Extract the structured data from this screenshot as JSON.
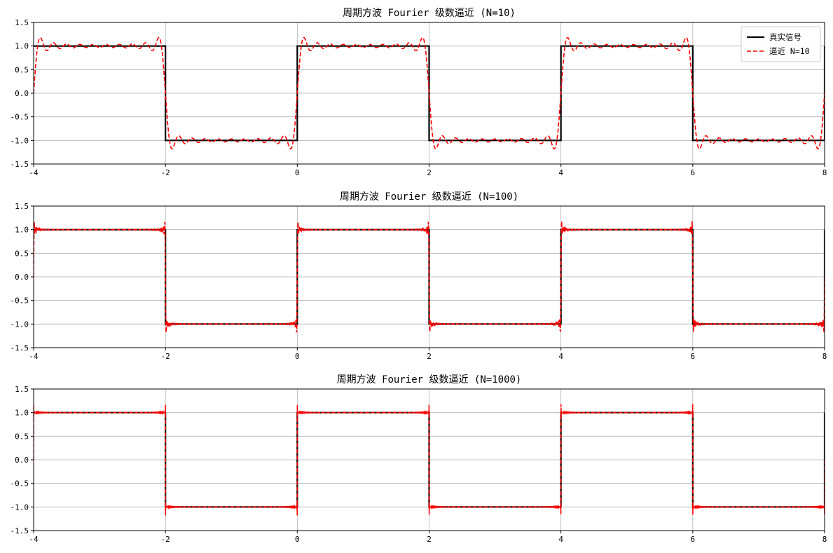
{
  "colors": {
    "true_signal": "#000000",
    "approx": "#ff0000",
    "grid": "#b0b0b0",
    "axes": "#000000"
  },
  "legend": {
    "placement": "top-right",
    "entries": [
      {
        "label": "真实信号",
        "style": "solid",
        "color": "#000000"
      },
      {
        "label": "逼近 N=10",
        "style": "dashed",
        "color": "#ff0000"
      }
    ]
  },
  "chart_data": [
    {
      "type": "line",
      "title": "周期方波 Fourier 级数逼近 (N=10)",
      "xlabel": "",
      "ylabel": "",
      "xlim": [
        -4,
        8
      ],
      "ylim": [
        -1.5,
        1.5
      ],
      "xticks": [
        "-4",
        "-2",
        "0",
        "2",
        "4",
        "6",
        "8"
      ],
      "yticks": [
        "1.5",
        "1.0",
        "0.5",
        "0.0",
        "-0.5",
        "-1.0",
        "-1.5"
      ],
      "grid": true,
      "legend": true,
      "series": [
        {
          "name": "真实信号",
          "style": "solid",
          "color": "#000000",
          "function": "square wave, period 4, amplitude 1 (+1 on [0,2), -1 on [2,4))"
        },
        {
          "name": "逼近 N=10",
          "style": "dashed",
          "color": "#ff0000",
          "function": "Fourier partial sum, 10 terms",
          "terms": 10
        }
      ]
    },
    {
      "type": "line",
      "title": "周期方波 Fourier 级数逼近 (N=100)",
      "xlabel": "",
      "ylabel": "",
      "xlim": [
        -4,
        8
      ],
      "ylim": [
        -1.5,
        1.5
      ],
      "xticks": [
        "-4",
        "-2",
        "0",
        "2",
        "4",
        "6",
        "8"
      ],
      "yticks": [
        "1.5",
        "1.0",
        "0.5",
        "0.0",
        "-0.5",
        "-1.0",
        "-1.5"
      ],
      "grid": true,
      "legend": false,
      "series": [
        {
          "style": "solid",
          "color": "#000000",
          "function": "square wave, period 4, amplitude 1"
        },
        {
          "style": "dashed",
          "color": "#ff0000",
          "function": "Fourier partial sum, 100 terms",
          "terms": 100
        }
      ]
    },
    {
      "type": "line",
      "title": "周期方波 Fourier 级数逼近 (N=1000)",
      "xlabel": "",
      "ylabel": "",
      "xlim": [
        -4,
        8
      ],
      "ylim": [
        -1.5,
        1.5
      ],
      "xticks": [
        "-4",
        "-2",
        "0",
        "2",
        "4",
        "6",
        "8"
      ],
      "yticks": [
        "1.5",
        "1.0",
        "0.5",
        "0.0",
        "-0.5",
        "-1.0",
        "-1.5"
      ],
      "grid": true,
      "legend": false,
      "series": [
        {
          "style": "solid",
          "color": "#000000",
          "function": "square wave, period 4, amplitude 1"
        },
        {
          "style": "dashed",
          "color": "#ff0000",
          "function": "Fourier partial sum, 1000 terms",
          "terms": 1000
        }
      ]
    }
  ]
}
